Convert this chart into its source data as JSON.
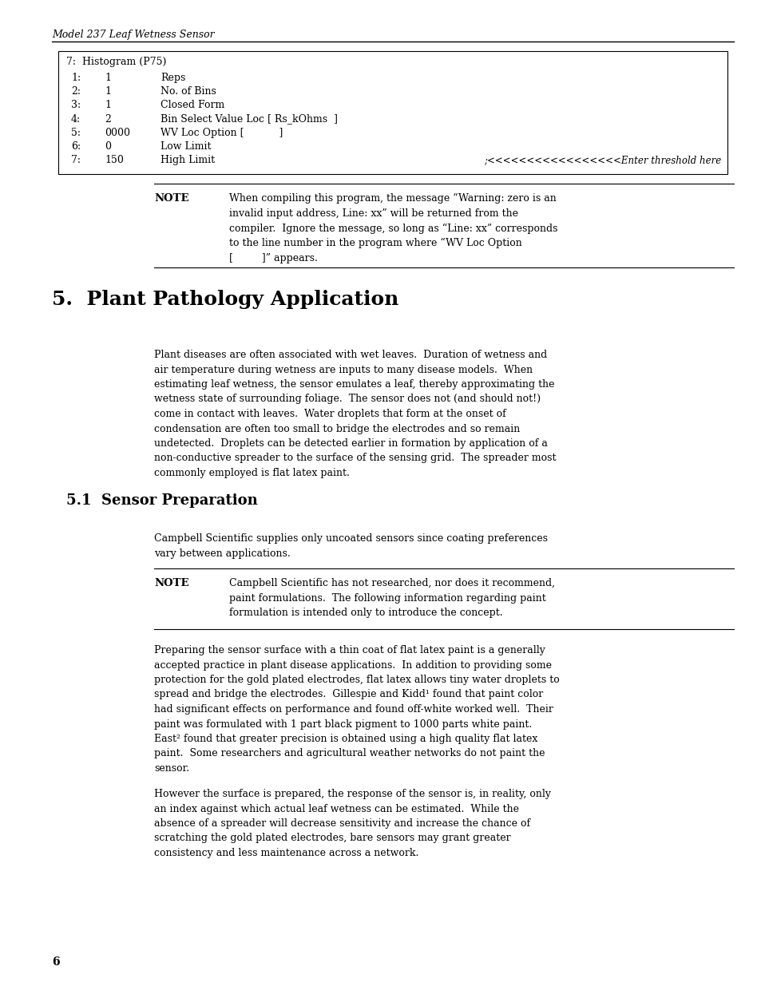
{
  "bg_color": "#ffffff",
  "page_width": 9.54,
  "page_height": 12.35,
  "header_italic": "Model 237 Leaf Wetness Sensor",
  "table_title": "7:  Histogram (P75)",
  "table_rows": [
    [
      "1:",
      "1",
      "Reps"
    ],
    [
      "2:",
      "1",
      "No. of Bins"
    ],
    [
      "3:",
      "1",
      "Closed Form"
    ],
    [
      "4:",
      "2",
      "Bin Select Value Loc [ Rs_kOhms  ]"
    ],
    [
      "5:",
      "0000",
      "WV Loc Option [           ]"
    ],
    [
      "6:",
      "0",
      "Low Limit"
    ],
    [
      "7:",
      "150",
      "High Limit",
      ";<<<<<<<<<<<<<<<<<Enter threshold here"
    ]
  ],
  "note1_label": "NOTE",
  "note1_text": "When compiling this program, the message “Warning: zero is an invalid input address, Line: xx” will be returned from the compiler.  Ignore the message, so long as “Line: xx” corresponds to the line number in the program where “WV Loc Option\n[         ]” appears.",
  "section5_title": "5.  Plant Pathology Application",
  "section5_body": "Plant diseases are often associated with wet leaves.  Duration of wetness and\nair temperature during wetness are inputs to many disease models.  When\nestimating leaf wetness, the sensor emulates a leaf, thereby approximating the\nwetness state of surrounding foliage.  The sensor does not (and should not!)\ncome in contact with leaves.  Water droplets that form at the onset of\ncondensation are often too small to bridge the electrodes and so remain\nundetected.  Droplets can be detected earlier in formation by application of a\nnon-conductive spreader to the surface of the sensing grid.  The spreader most\ncommonly employed is flat latex paint.",
  "section51_title": "5.1  Sensor Preparation",
  "section51_body": "Campbell Scientific supplies only uncoated sensors since coating preferences\nvary between applications.",
  "note2_label": "NOTE",
  "note2_text": "Campbell Scientific has not researched, nor does it recommend,\npaint formulations.  The following information regarding paint\nformulation is intended only to introduce the concept.",
  "section51_body2": "Preparing the sensor surface with a thin coat of flat latex paint is a generally\naccepted practice in plant disease applications.  In addition to providing some\nprotection for the gold plated electrodes, flat latex allows tiny water droplets to\nspread and bridge the electrodes.  Gillespie and Kidd¹ found that paint color\nhad significant effects on performance and found off-white worked well.  Their\npaint was formulated with 1 part black pigment to 1000 parts white paint.\nEast² found that greater precision is obtained using a high quality flat latex\npaint.  Some researchers and agricultural weather networks do not paint the\nsensor.",
  "section51_body3": "However the surface is prepared, the response of the sensor is, in reality, only\nan index against which actual leaf wetness can be estimated.  While the\nabsence of a spreader will decrease sensitivity and increase the chance of\nscratching the gold plated electrodes, bare sensors may grant greater\nconsistency and less maintenance across a network.",
  "page_number": "6",
  "serif_family": "DejaVu Serif"
}
